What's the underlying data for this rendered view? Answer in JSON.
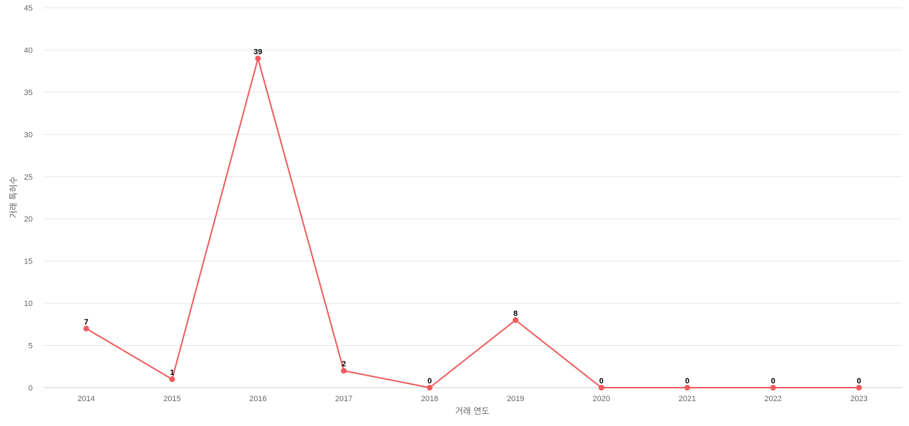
{
  "chart_data": {
    "type": "line",
    "title": "",
    "xlabel": "거래 연도",
    "ylabel": "거래 특허수",
    "categories": [
      "2014",
      "2015",
      "2016",
      "2017",
      "2018",
      "2019",
      "2020",
      "2021",
      "2022",
      "2023"
    ],
    "series": [
      {
        "values": [
          7,
          1,
          39,
          2,
          0,
          8,
          0,
          0,
          0,
          0
        ],
        "color": "#ef5b5b"
      }
    ],
    "ylim": [
      0,
      45
    ],
    "yticks": [
      0,
      5,
      10,
      15,
      20,
      25,
      30,
      35,
      40,
      45
    ],
    "grid": true,
    "legend": "none",
    "data_labels": true
  }
}
